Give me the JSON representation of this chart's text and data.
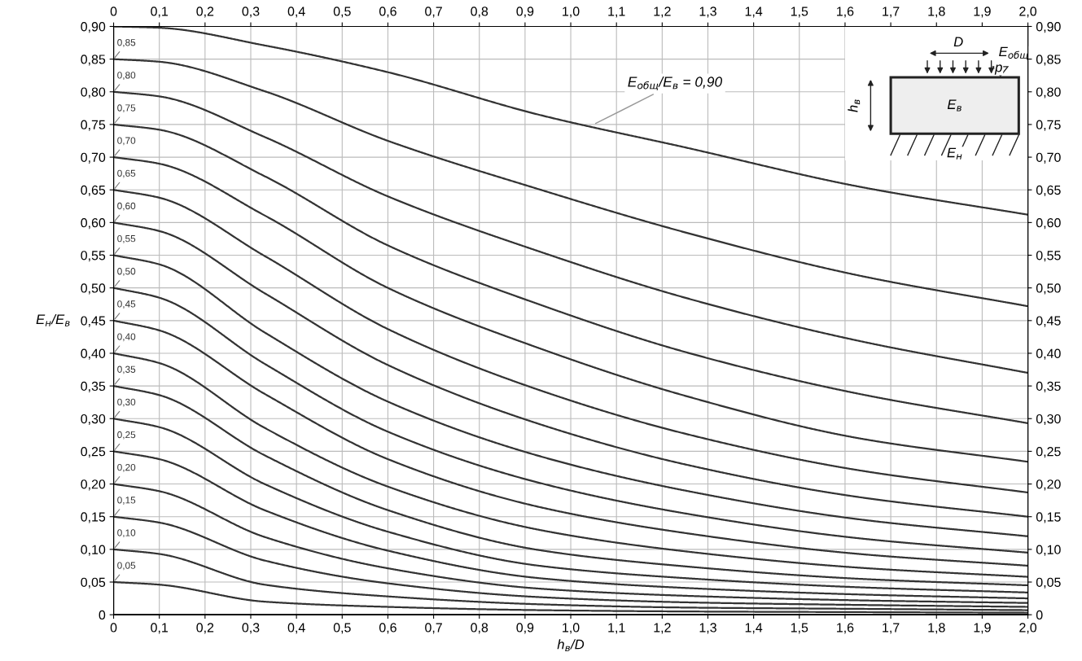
{
  "chart_data": {
    "type": "line",
    "xlabel": "h$_{в}$/D",
    "ylabel": "E$_{н}$/E$_{в}$",
    "x": [
      0,
      0.1,
      0.33,
      0.6,
      0.93,
      1.25,
      1.63,
      2.0
    ],
    "series": [
      {
        "color": "#333333",
        "values": [
          0.9,
          0.898,
          0.871,
          0.83,
          0.765,
          0.715,
          0.655,
          0.612
        ]
      },
      {
        "name": "0,85",
        "color": "#333333",
        "values": [
          0.85,
          0.846,
          0.801,
          0.725,
          0.651,
          0.585,
          0.519,
          0.472
        ]
      },
      {
        "name": "0,80",
        "color": "#333333",
        "values": [
          0.8,
          0.793,
          0.731,
          0.64,
          0.556,
          0.485,
          0.419,
          0.37
        ]
      },
      {
        "name": "0,75",
        "color": "#333333",
        "values": [
          0.75,
          0.742,
          0.671,
          0.565,
          0.475,
          0.402,
          0.338,
          0.293
        ]
      },
      {
        "name": "0,70",
        "color": "#333333",
        "values": [
          0.7,
          0.69,
          0.611,
          0.5,
          0.408,
          0.335,
          0.27,
          0.234
        ]
      },
      {
        "name": "0,65",
        "color": "#333333",
        "values": [
          0.65,
          0.638,
          0.549,
          0.437,
          0.344,
          0.277,
          0.221,
          0.187
        ]
      },
      {
        "name": "0,60",
        "color": "#333333",
        "values": [
          0.6,
          0.587,
          0.492,
          0.382,
          0.292,
          0.23,
          0.18,
          0.15
        ]
      },
      {
        "name": "0,55",
        "color": "#333333",
        "values": [
          0.55,
          0.536,
          0.432,
          0.326,
          0.243,
          0.19,
          0.146,
          0.12
        ]
      },
      {
        "name": "0,50",
        "color": "#333333",
        "values": [
          0.5,
          0.485,
          0.384,
          0.28,
          0.202,
          0.155,
          0.117,
          0.095
        ]
      },
      {
        "name": "0,45",
        "color": "#333333",
        "values": [
          0.45,
          0.435,
          0.338,
          0.238,
          0.165,
          0.125,
          0.093,
          0.075
        ]
      },
      {
        "name": "0,40",
        "color": "#333333",
        "values": [
          0.4,
          0.385,
          0.286,
          0.196,
          0.13,
          0.097,
          0.072,
          0.058
        ]
      },
      {
        "name": "0,35",
        "color": "#333333",
        "values": [
          0.35,
          0.336,
          0.244,
          0.16,
          0.099,
          0.074,
          0.055,
          0.045
        ]
      },
      {
        "name": "0,30",
        "color": "#333333",
        "values": [
          0.3,
          0.287,
          0.2,
          0.127,
          0.075,
          0.056,
          0.042,
          0.034
        ]
      },
      {
        "name": "0,25",
        "color": "#333333",
        "values": [
          0.25,
          0.238,
          0.16,
          0.098,
          0.056,
          0.041,
          0.031,
          0.025
        ]
      },
      {
        "name": "0,20",
        "color": "#333333",
        "values": [
          0.2,
          0.189,
          0.119,
          0.071,
          0.04,
          0.029,
          0.022,
          0.018
        ]
      },
      {
        "name": "0,15",
        "color": "#333333",
        "values": [
          0.15,
          0.141,
          0.083,
          0.048,
          0.027,
          0.019,
          0.015,
          0.012
        ]
      },
      {
        "name": "0,10",
        "color": "#333333",
        "values": [
          0.1,
          0.093,
          0.046,
          0.028,
          0.016,
          0.011,
          0.009,
          0.007
        ]
      },
      {
        "name": "0,05",
        "color": "#333333",
        "values": [
          0.05,
          0.046,
          0.02,
          0.012,
          0.007,
          0.005,
          0.004,
          0.003
        ]
      }
    ],
    "xlim": [
      0,
      2.0
    ],
    "xticks": [
      0,
      {
        "value": 0.1,
        "label": "0,1"
      },
      {
        "value": 0.2,
        "label": "0,2"
      },
      {
        "value": 0.3,
        "label": "0,3"
      },
      {
        "value": 0.4,
        "label": "0,4"
      },
      {
        "value": 0.5,
        "label": "0,5"
      },
      {
        "value": 0.6,
        "label": "0,6"
      },
      {
        "value": 0.7,
        "label": "0,7"
      },
      {
        "value": 0.8,
        "label": "0,8"
      },
      {
        "value": 0.9,
        "label": "0,9"
      },
      {
        "value": 1.0,
        "label": "1,0"
      },
      {
        "value": 1.1,
        "label": "1,1"
      },
      {
        "value": 1.2,
        "label": "1,2"
      },
      {
        "value": 1.3,
        "label": "1,3"
      },
      {
        "value": 1.4,
        "label": "1,4"
      },
      {
        "value": 1.5,
        "label": "1,5"
      },
      {
        "value": 1.6,
        "label": "1,6"
      },
      {
        "value": 1.7,
        "label": "1,7"
      },
      {
        "value": 1.8,
        "label": "1,8"
      },
      {
        "value": 1.9,
        "label": "1,9"
      },
      {
        "value": 2.0,
        "label": "2,0"
      }
    ],
    "x2lim": [
      0,
      2.0
    ],
    "x2ticks": [
      0,
      {
        "value": 0.1,
        "label": "0,1"
      },
      {
        "value": 0.2,
        "label": "0,2"
      },
      {
        "value": 0.3,
        "label": "0,3"
      },
      {
        "value": 0.4,
        "label": "0,4"
      },
      {
        "value": 0.5,
        "label": "0,5"
      },
      {
        "value": 0.6,
        "label": "0,6"
      },
      {
        "value": 0.7,
        "label": "0,7"
      },
      {
        "value": 0.8,
        "label": "0,8"
      },
      {
        "value": 0.9,
        "label": "0,9"
      },
      {
        "value": 1.0,
        "label": "1,0"
      },
      {
        "value": 1.1,
        "label": "1,1"
      },
      {
        "value": 1.2,
        "label": "1,2"
      },
      {
        "value": 1.3,
        "label": "1,3"
      },
      {
        "value": 1.4,
        "label": "1,4"
      },
      {
        "value": 1.5,
        "label": "1,5"
      },
      {
        "value": 1.6,
        "label": "1,6"
      },
      {
        "value": 1.7,
        "label": "1,7"
      },
      {
        "value": 1.8,
        "label": "1,8"
      },
      {
        "value": 1.9,
        "label": "1,9"
      },
      {
        "value": 2.0,
        "label": "2,0"
      }
    ],
    "ylim": [
      0,
      0.9
    ],
    "yticks": [
      0,
      {
        "value": 0.05,
        "label": "0,05"
      },
      {
        "value": 0.1,
        "label": "0,10"
      },
      {
        "value": 0.15,
        "label": "0,15"
      },
      {
        "value": 0.2,
        "label": "0,20"
      },
      {
        "value": 0.25,
        "label": "0,25"
      },
      {
        "value": 0.3,
        "label": "0,30"
      },
      {
        "value": 0.35,
        "label": "0,35"
      },
      {
        "value": 0.4,
        "label": "0,40"
      },
      {
        "value": 0.45,
        "label": "0,45"
      },
      {
        "value": 0.5,
        "label": "0,50"
      },
      {
        "value": 0.55,
        "label": "0,55"
      },
      {
        "value": 0.6,
        "label": "0,60"
      },
      {
        "value": 0.65,
        "label": "0,65"
      },
      {
        "value": 0.7,
        "label": "0,70"
      },
      {
        "value": 0.75,
        "label": "0,75"
      },
      {
        "value": 0.8,
        "label": "0,80"
      },
      {
        "value": 0.85,
        "label": "0,85"
      },
      {
        "value": 0.9,
        "label": "0,90"
      }
    ],
    "y2lim": [
      0,
      0.9
    ],
    "y2ticks": [
      0,
      {
        "value": 0.05,
        "label": "0,05"
      },
      {
        "value": 0.1,
        "label": "0,10"
      },
      {
        "value": 0.15,
        "label": "0,15"
      },
      {
        "value": 0.2,
        "label": "0,20"
      },
      {
        "value": 0.25,
        "label": "0,25"
      },
      {
        "value": 0.3,
        "label": "0,30"
      },
      {
        "value": 0.35,
        "label": "0,35"
      },
      {
        "value": 0.4,
        "label": "0,40"
      },
      {
        "value": 0.45,
        "label": "0,45"
      },
      {
        "value": 0.5,
        "label": "0,50"
      },
      {
        "value": 0.55,
        "label": "0,55"
      },
      {
        "value": 0.6,
        "label": "0,60"
      },
      {
        "value": 0.65,
        "label": "0,65"
      },
      {
        "value": 0.7,
        "label": "0,70"
      },
      {
        "value": 0.75,
        "label": "0,75"
      },
      {
        "value": 0.8,
        "label": "0,80"
      },
      {
        "value": 0.85,
        "label": "0,85"
      },
      {
        "value": 0.9,
        "label": "0,90"
      }
    ],
    "grid": true,
    "annotations": [
      {
        "text": "E$_{общ}$/E$_{в}$ = 0,90",
        "x": 1.05,
        "y": 0.75
      },
      "D",
      "p",
      "E$_{общ}$",
      "h$_{в}$",
      "E$_{в}$",
      "E$_{н}$"
    ]
  }
}
